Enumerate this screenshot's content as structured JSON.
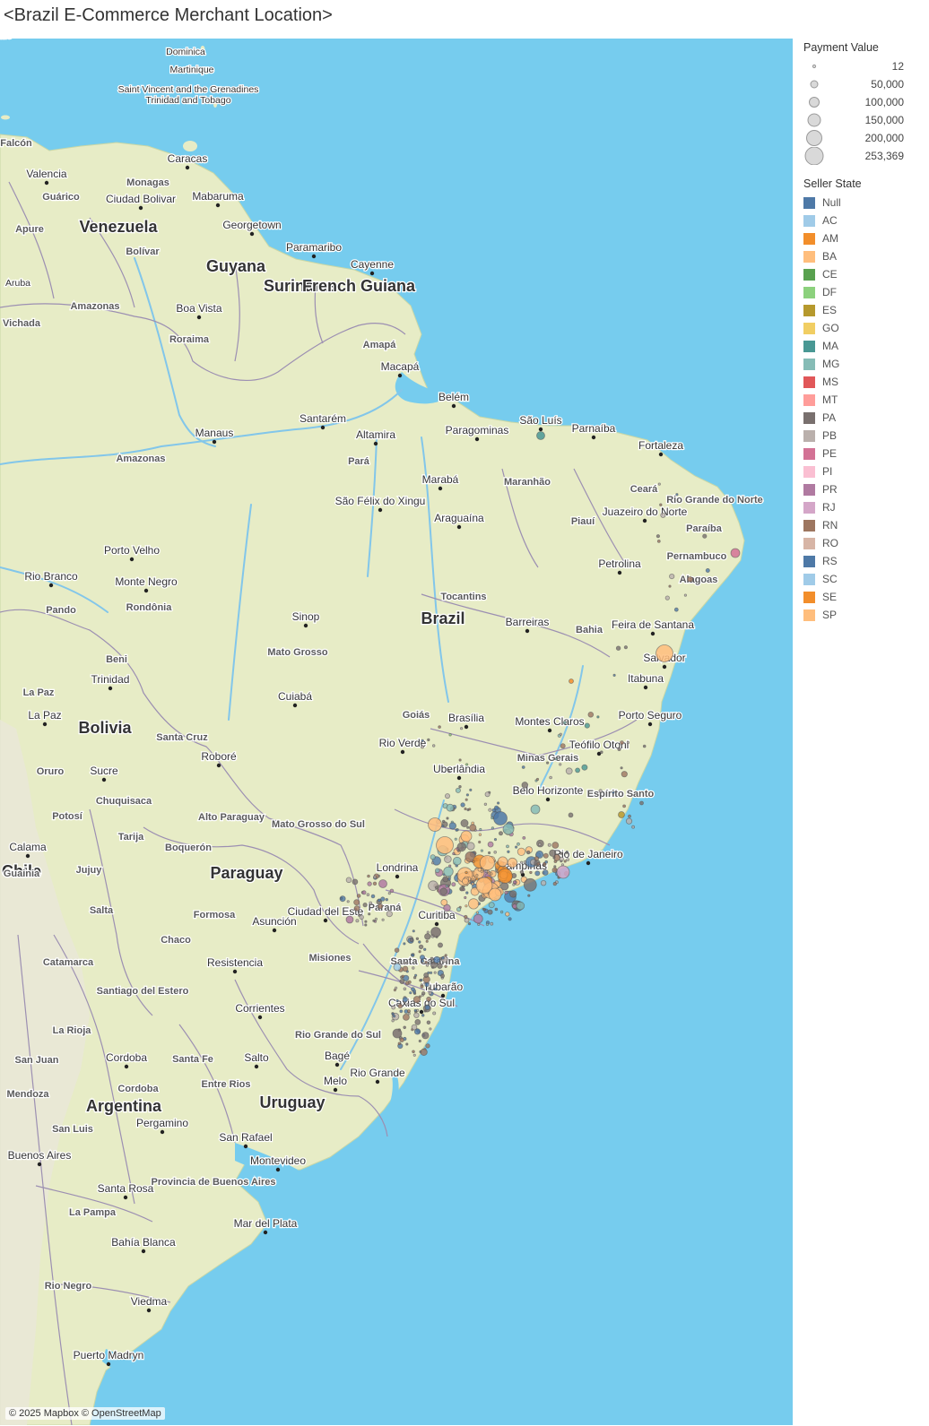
{
  "title": "<Brazil E-Commerce Merchant Location>",
  "attribution": "© 2025 Mapbox © OpenStreetMap",
  "colors": {
    "ocean": "#76CCEE",
    "land": "#E7ECC6",
    "land_dry": "#E9E8D7",
    "border": "#9C8FB2",
    "river": "#82C6EA"
  },
  "legend": {
    "size_title": "Payment Value",
    "sizes": [
      "12",
      "50,000",
      "100,000",
      "150,000",
      "200,000",
      "253,369"
    ],
    "state_title": "Seller State",
    "states": [
      {
        "label": "Null",
        "color": "#4E79A7"
      },
      {
        "label": "AC",
        "color": "#A0CBE8"
      },
      {
        "label": "AM",
        "color": "#F28E2B"
      },
      {
        "label": "BA",
        "color": "#FFBE7D"
      },
      {
        "label": "CE",
        "color": "#59A14F"
      },
      {
        "label": "DF",
        "color": "#8CD17D"
      },
      {
        "label": "ES",
        "color": "#B6992D"
      },
      {
        "label": "GO",
        "color": "#F1CE63"
      },
      {
        "label": "MA",
        "color": "#499894"
      },
      {
        "label": "MG",
        "color": "#86BCB6"
      },
      {
        "label": "MS",
        "color": "#E15759"
      },
      {
        "label": "MT",
        "color": "#FF9D9A"
      },
      {
        "label": "PA",
        "color": "#79706E"
      },
      {
        "label": "PB",
        "color": "#BAB0AC"
      },
      {
        "label": "PE",
        "color": "#D37295"
      },
      {
        "label": "PI",
        "color": "#FABFD2"
      },
      {
        "label": "PR",
        "color": "#B07AA1"
      },
      {
        "label": "RJ",
        "color": "#D4A6C8"
      },
      {
        "label": "RN",
        "color": "#9D7660"
      },
      {
        "label": "RO",
        "color": "#D7B5A6"
      },
      {
        "label": "RS",
        "color": "#4E79A7"
      },
      {
        "label": "SC",
        "color": "#A0CBE8"
      },
      {
        "label": "SE",
        "color": "#F28E2B"
      },
      {
        "label": "SP",
        "color": "#FFBE7D"
      }
    ]
  },
  "map_labels": [
    {
      "name": "Dominica",
      "kind": "place"
    },
    {
      "name": "Martinique",
      "kind": "place"
    },
    {
      "name": "Saint Vincent and the Grenadines",
      "kind": "place"
    },
    {
      "name": "Trinidad and Tobago",
      "kind": "place"
    },
    {
      "name": "Caracas",
      "kind": "city"
    },
    {
      "name": "Valencia",
      "kind": "city"
    },
    {
      "name": "Monagas",
      "kind": "region"
    },
    {
      "name": "Guárico",
      "kind": "region"
    },
    {
      "name": "Ciudad Bolivar",
      "kind": "city"
    },
    {
      "name": "Mabaruma",
      "kind": "city"
    },
    {
      "name": "Georgetown",
      "kind": "city"
    },
    {
      "name": "Apure",
      "kind": "region"
    },
    {
      "name": "Venezuela",
      "kind": "country"
    },
    {
      "name": "Bolívar",
      "kind": "region"
    },
    {
      "name": "Paramaribo",
      "kind": "city"
    },
    {
      "name": "Cayenne",
      "kind": "city"
    },
    {
      "name": "Guyana",
      "kind": "country"
    },
    {
      "name": "Suriname",
      "kind": "country"
    },
    {
      "name": "French Guiana",
      "kind": "country"
    },
    {
      "name": "Amazonas",
      "kind": "region"
    },
    {
      "name": "Boa Vista",
      "kind": "city"
    },
    {
      "name": "Roraima",
      "kind": "region"
    },
    {
      "name": "Amapá",
      "kind": "region"
    },
    {
      "name": "Macapá",
      "kind": "city"
    },
    {
      "name": "Belém",
      "kind": "city"
    },
    {
      "name": "São Luís",
      "kind": "city"
    },
    {
      "name": "Parnaíba",
      "kind": "city"
    },
    {
      "name": "Santarém",
      "kind": "city"
    },
    {
      "name": "Manaus",
      "kind": "city"
    },
    {
      "name": "Altamira",
      "kind": "city"
    },
    {
      "name": "Paragominas",
      "kind": "city"
    },
    {
      "name": "Fortaleza",
      "kind": "city"
    },
    {
      "name": "Amazonas",
      "kind": "region"
    },
    {
      "name": "Pará",
      "kind": "region"
    },
    {
      "name": "Marabá",
      "kind": "city"
    },
    {
      "name": "Maranhão",
      "kind": "region"
    },
    {
      "name": "Ceará",
      "kind": "region"
    },
    {
      "name": "Rio Grande do Norte",
      "kind": "region"
    },
    {
      "name": "São Félix do Xingu",
      "kind": "city"
    },
    {
      "name": "Juazeiro do Norte",
      "kind": "city"
    },
    {
      "name": "Araguaína",
      "kind": "city"
    },
    {
      "name": "Piauí",
      "kind": "region"
    },
    {
      "name": "Paraíba",
      "kind": "region"
    },
    {
      "name": "Porto Velho",
      "kind": "city"
    },
    {
      "name": "Pernambuco",
      "kind": "region"
    },
    {
      "name": "Petrolina",
      "kind": "city"
    },
    {
      "name": "Rio Branco",
      "kind": "city"
    },
    {
      "name": "Monte Negro",
      "kind": "city"
    },
    {
      "name": "Alagoas",
      "kind": "region"
    },
    {
      "name": "Tocantins",
      "kind": "region"
    },
    {
      "name": "Pando",
      "kind": "region"
    },
    {
      "name": "Rondônia",
      "kind": "region"
    },
    {
      "name": "Sinop",
      "kind": "city"
    },
    {
      "name": "Brazil",
      "kind": "country"
    },
    {
      "name": "Barreiras",
      "kind": "city"
    },
    {
      "name": "Feira de Santana",
      "kind": "city"
    },
    {
      "name": "Bahia",
      "kind": "region"
    },
    {
      "name": "Mato Grosso",
      "kind": "region"
    },
    {
      "name": "Beni",
      "kind": "region"
    },
    {
      "name": "Salvador",
      "kind": "city"
    },
    {
      "name": "Trinidad",
      "kind": "city"
    },
    {
      "name": "Itabuna",
      "kind": "city"
    },
    {
      "name": "La Paz",
      "kind": "region"
    },
    {
      "name": "Cuiabá",
      "kind": "city"
    },
    {
      "name": "La Paz",
      "kind": "city"
    },
    {
      "name": "Goiás",
      "kind": "region"
    },
    {
      "name": "Brasília",
      "kind": "city"
    },
    {
      "name": "Montes Claros",
      "kind": "city"
    },
    {
      "name": "Porto Seguro",
      "kind": "city"
    },
    {
      "name": "Bolivia",
      "kind": "country"
    },
    {
      "name": "Santa Cruz",
      "kind": "region"
    },
    {
      "name": "Rio Verde",
      "kind": "city"
    },
    {
      "name": "Teófilo Otoni",
      "kind": "city"
    },
    {
      "name": "Roboré",
      "kind": "city"
    },
    {
      "name": "Minas Gerais",
      "kind": "region"
    },
    {
      "name": "Oruro",
      "kind": "region"
    },
    {
      "name": "Sucre",
      "kind": "city"
    },
    {
      "name": "Uberlândia",
      "kind": "city"
    },
    {
      "name": "Chuquisaca",
      "kind": "region"
    },
    {
      "name": "Belo Horizonte",
      "kind": "city"
    },
    {
      "name": "Espírito Santo",
      "kind": "region"
    },
    {
      "name": "Alto Paraguay",
      "kind": "region"
    },
    {
      "name": "Potosí",
      "kind": "region"
    },
    {
      "name": "Mato Grosso do Sul",
      "kind": "region"
    },
    {
      "name": "Tarija",
      "kind": "region"
    },
    {
      "name": "Boquerón",
      "kind": "region"
    },
    {
      "name": "Rio de Janeiro",
      "kind": "city"
    },
    {
      "name": "Calama",
      "kind": "city"
    },
    {
      "name": "Londrina",
      "kind": "city"
    },
    {
      "name": "Campinas",
      "kind": "city"
    },
    {
      "name": "Chile",
      "kind": "country"
    },
    {
      "name": "Jujuy",
      "kind": "region"
    },
    {
      "name": "Paraguay",
      "kind": "country"
    },
    {
      "name": "Salta",
      "kind": "region"
    },
    {
      "name": "Paraná",
      "kind": "region"
    },
    {
      "name": "Ciudad del Este",
      "kind": "city"
    },
    {
      "name": "Curitiba",
      "kind": "city"
    },
    {
      "name": "Formosa",
      "kind": "region"
    },
    {
      "name": "Asunción",
      "kind": "city"
    },
    {
      "name": "Chaco",
      "kind": "region"
    },
    {
      "name": "Misiones",
      "kind": "region"
    },
    {
      "name": "Santa Catarina",
      "kind": "region"
    },
    {
      "name": "Catamarca",
      "kind": "region"
    },
    {
      "name": "Resistencia",
      "kind": "city"
    },
    {
      "name": "Santiago del Estero",
      "kind": "region"
    },
    {
      "name": "Tubarão",
      "kind": "city"
    },
    {
      "name": "Corrientes",
      "kind": "city"
    },
    {
      "name": "Caxias do Sul",
      "kind": "city"
    },
    {
      "name": "La Rioja",
      "kind": "region"
    },
    {
      "name": "Rio Grande do Sul",
      "kind": "region"
    },
    {
      "name": "San Juan",
      "kind": "region"
    },
    {
      "name": "Cordoba",
      "kind": "city"
    },
    {
      "name": "Santa Fe",
      "kind": "region"
    },
    {
      "name": "Salto",
      "kind": "city"
    },
    {
      "name": "Bagé",
      "kind": "city"
    },
    {
      "name": "Rio Grande",
      "kind": "city"
    },
    {
      "name": "Entre Rios",
      "kind": "region"
    },
    {
      "name": "Melo",
      "kind": "city"
    },
    {
      "name": "Mendoza",
      "kind": "region"
    },
    {
      "name": "Cordoba",
      "kind": "region"
    },
    {
      "name": "Uruguay",
      "kind": "country"
    },
    {
      "name": "Argentina",
      "kind": "country"
    },
    {
      "name": "Pergamino",
      "kind": "city"
    },
    {
      "name": "San Luis",
      "kind": "region"
    },
    {
      "name": "San Rafael",
      "kind": "city"
    },
    {
      "name": "Buenos Aires",
      "kind": "city"
    },
    {
      "name": "Montevideo",
      "kind": "city"
    },
    {
      "name": "Provincia de Buenos Aires",
      "kind": "region"
    },
    {
      "name": "Santa Rosa",
      "kind": "city"
    },
    {
      "name": "La Pampa",
      "kind": "region"
    },
    {
      "name": "Mar del Plata",
      "kind": "city"
    },
    {
      "name": "Bahía Blanca",
      "kind": "city"
    },
    {
      "name": "Rio Negro",
      "kind": "region"
    },
    {
      "name": "Viedma",
      "kind": "city"
    },
    {
      "name": "Puerto Madryn",
      "kind": "city"
    },
    {
      "name": "Falcón",
      "kind": "region"
    },
    {
      "name": "Aruba",
      "kind": "place"
    },
    {
      "name": "Vichada",
      "kind": "region"
    },
    {
      "name": "Guainia",
      "kind": "region"
    },
    {
      "name": "Chile",
      "kind": "region"
    }
  ]
}
